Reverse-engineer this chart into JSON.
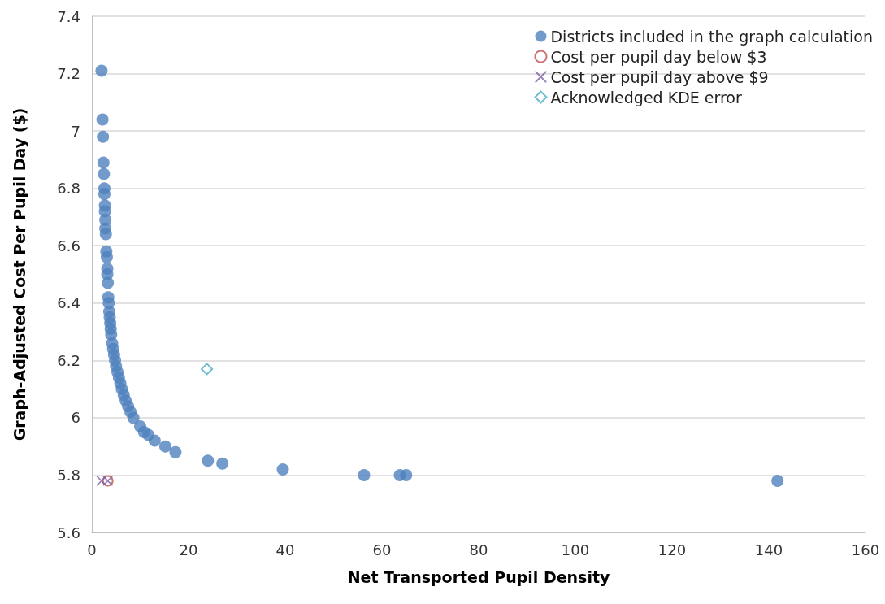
{
  "chart_data": {
    "type": "scatter",
    "xlabel": "Net Transported Pupil Density",
    "ylabel": "Graph-Adjusted Cost Per Pupil Day ($)",
    "xlim": [
      0,
      160
    ],
    "xticks": [
      0,
      20,
      40,
      60,
      80,
      100,
      120,
      140,
      160
    ],
    "ylim": [
      5.6,
      7.4
    ],
    "yticks": [
      5.6,
      5.8,
      6,
      6.2,
      6.4,
      6.6,
      6.8,
      7,
      7.2,
      7.4
    ],
    "grid": "y",
    "legend": "top right",
    "series": [
      {
        "name": "Districts included in the graph calculation",
        "color": "#4f81bd",
        "marker": "circle",
        "x": [
          2.0,
          2.2,
          2.3,
          2.4,
          2.5,
          2.6,
          2.6,
          2.7,
          2.7,
          2.8,
          2.8,
          2.9,
          3.0,
          3.1,
          3.2,
          3.2,
          3.3,
          3.4,
          3.5,
          3.6,
          3.7,
          3.8,
          3.9,
          4.0,
          4.2,
          4.4,
          4.6,
          4.8,
          5.0,
          5.3,
          5.6,
          5.9,
          6.2,
          6.6,
          7.0,
          7.5,
          8.0,
          8.6,
          10.0,
          10.8,
          11.7,
          13.0,
          15.2,
          17.3,
          24,
          27,
          39.5,
          56.3,
          63.7,
          65,
          141.8
        ],
        "values": [
          7.21,
          7.04,
          6.98,
          6.89,
          6.85,
          6.8,
          6.78,
          6.74,
          6.72,
          6.69,
          6.66,
          6.64,
          6.58,
          6.56,
          6.52,
          6.5,
          6.47,
          6.42,
          6.4,
          6.37,
          6.35,
          6.33,
          6.31,
          6.29,
          6.26,
          6.24,
          6.22,
          6.2,
          6.18,
          6.16,
          6.14,
          6.12,
          6.1,
          6.08,
          6.06,
          6.04,
          6.02,
          6.0,
          5.97,
          5.95,
          5.94,
          5.92,
          5.9,
          5.88,
          5.85,
          5.84,
          5.82,
          5.8,
          5.8,
          5.8,
          5.78
        ]
      },
      {
        "name": "Cost per pupil day below $3",
        "color": "#c0504d",
        "marker": "circle-open",
        "x": [
          3.3
        ],
        "values": [
          5.78
        ]
      },
      {
        "name": "Cost per pupil day above $9",
        "color": "#8064a2",
        "marker": "cross",
        "x": [
          2.0,
          3.3
        ],
        "values": [
          5.78,
          5.78
        ]
      },
      {
        "name": "Acknowledged KDE error",
        "color": "#4bacc6",
        "marker": "diamond-open",
        "x": [
          23.8
        ],
        "values": [
          6.17
        ]
      }
    ]
  }
}
